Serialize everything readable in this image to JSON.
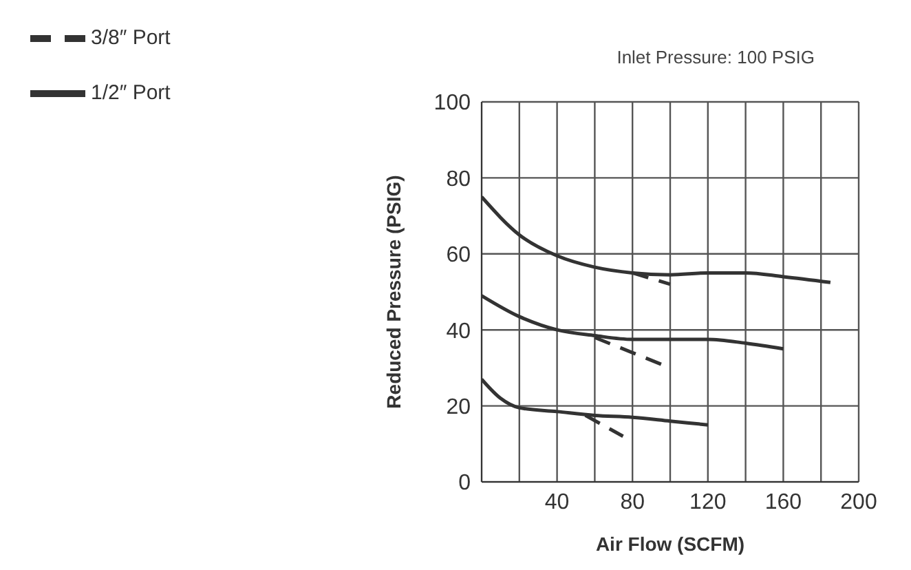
{
  "chart_data": {
    "type": "line",
    "xlabel": "Air Flow (SCFM)",
    "ylabel": "Reduced Pressure (PSIG)",
    "annotations": [
      "Inlet Pressure: 100 PSIG"
    ],
    "xlim": [
      0,
      200
    ],
    "xticks": [
      {
        "value": 0,
        "label": null
      },
      {
        "value": 20,
        "label": null
      },
      40,
      {
        "value": 60,
        "label": null
      },
      80,
      {
        "value": 100,
        "label": null
      },
      120,
      {
        "value": 140,
        "label": null
      },
      160,
      {
        "value": 180,
        "label": null
      },
      200
    ],
    "ylim": [
      0,
      100
    ],
    "yticks": [
      0,
      20,
      40,
      60,
      80,
      100
    ],
    "grid": true,
    "legend": "top left",
    "marker": "none",
    "series": [
      {
        "name": "3/8″ Port",
        "color": "#333333",
        "line_style": "dashed",
        "x": [
          80,
          100
        ],
        "values": [
          55,
          52
        ]
      },
      {
        "name": "1/2″ Port",
        "color": "#333333",
        "line_style": "solid",
        "x": [
          0,
          20,
          40,
          60,
          80,
          100,
          120,
          140,
          160,
          185
        ],
        "values": [
          75,
          65,
          59.5,
          56.5,
          55,
          54.5,
          55,
          55,
          54,
          52.5
        ]
      },
      {
        "color": "#333333",
        "line_style": "dashed",
        "x": [
          60,
          100
        ],
        "values": [
          38,
          30
        ]
      },
      {
        "color": "#333333",
        "line_style": "solid",
        "x": [
          0,
          20,
          40,
          60,
          80,
          100,
          120,
          140,
          160
        ],
        "values": [
          49,
          43.5,
          40,
          38.5,
          37.5,
          37.5,
          37.5,
          36.5,
          35
        ]
      },
      {
        "color": "#333333",
        "line_style": "dashed",
        "x": [
          55,
          75
        ],
        "values": [
          17.5,
          12
        ]
      },
      {
        "color": "#333333",
        "line_style": "solid",
        "x": [
          0,
          10,
          20,
          40,
          60,
          80,
          100,
          120
        ],
        "values": [
          27,
          22,
          19.5,
          18.5,
          17.5,
          17,
          16,
          15
        ]
      }
    ]
  }
}
